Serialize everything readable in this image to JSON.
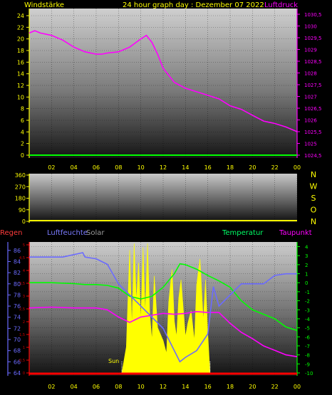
{
  "header": {
    "left_label": "Windstärke",
    "title": "24 hour graph day : Dezember 07 2022",
    "right_label": "Luftdruck"
  },
  "mid_header": {
    "regen_label": "Regen",
    "humidity_label": "Luftfeuchte",
    "solar_label": "Solar",
    "temp_label": "Temperatur",
    "dew_label": "Taupunkt"
  },
  "sun_label": "Sun",
  "colors": {
    "wind_axis": "#ffff00",
    "pressure": "#ff00ff",
    "wind_line": "#00ff00",
    "temperature": "#00ff00",
    "dewpoint": "#ff00ff",
    "humidity": "#6b6bff",
    "solar": "#ffff00",
    "rain": "#ff0000",
    "regen_label": "#ff3b3b",
    "humidity_label": "#7b7bff",
    "solar_label": "#9a9a9a",
    "temp_label": "#00ff66",
    "dew_label": "#ff00ff"
  },
  "chart_data": [
    {
      "id": "wind_pressure",
      "type": "line",
      "x_ticks": [
        "02",
        "04",
        "06",
        "08",
        "10",
        "12",
        "14",
        "16",
        "18",
        "20",
        "22",
        "00"
      ],
      "left_axis": {
        "ticks": [
          "0",
          "2",
          "4",
          "6",
          "8",
          "10",
          "12",
          "14",
          "16",
          "18",
          "20",
          "22",
          "24"
        ],
        "ylim": [
          0,
          24
        ]
      },
      "right_axis": {
        "ticks": [
          "1024,5",
          "1025",
          "1025,5",
          "1026",
          "1026,5",
          "1027",
          "1027,5",
          "1028",
          "1028,5",
          "1029",
          "1029,5",
          "1030",
          "1030,5"
        ],
        "ylim": [
          1024.5,
          1030.5
        ]
      },
      "series": [
        {
          "axis": "right",
          "color": "#ff00ff",
          "x": [
            0,
            0.5,
            1,
            2,
            3,
            4,
            5,
            6,
            6.5,
            7,
            8,
            9,
            10,
            10.5,
            11,
            11.5,
            12,
            13,
            14,
            15,
            16,
            17,
            18,
            19,
            20,
            21,
            21.5,
            22,
            23,
            24
          ],
          "y": [
            1029.7,
            1029.8,
            1029.7,
            1029.6,
            1029.4,
            1029.1,
            1028.9,
            1028.8,
            1028.8,
            1028.85,
            1028.9,
            1029.1,
            1029.45,
            1029.6,
            1029.3,
            1028.8,
            1028.2,
            1027.6,
            1027.35,
            1027.2,
            1027.05,
            1026.9,
            1026.6,
            1026.45,
            1026.2,
            1025.95,
            1025.9,
            1025.85,
            1025.7,
            1025.5
          ]
        },
        {
          "axis": "left",
          "color": "#00ff00",
          "x": [
            0,
            24
          ],
          "y": [
            0,
            0
          ]
        }
      ]
    },
    {
      "id": "wind_direction",
      "type": "scatter",
      "x_ticks": [
        "02",
        "04",
        "06",
        "08",
        "10",
        "12",
        "14",
        "16",
        "18",
        "20",
        "22",
        "00"
      ],
      "left_axis": {
        "ticks": [
          "0",
          "90",
          "180",
          "270",
          "360"
        ],
        "ylim": [
          0,
          360
        ]
      },
      "right_axis": {
        "ticks": [
          "N",
          "W",
          "S",
          "O",
          "N"
        ]
      },
      "series": [
        {
          "color": "#ffff00",
          "x": [
            0,
            24
          ],
          "y": [
            0,
            0
          ]
        }
      ]
    },
    {
      "id": "temp_humidity_solar",
      "type": "line",
      "x_ticks": [
        "02",
        "04",
        "06",
        "08",
        "10",
        "12",
        "14",
        "16",
        "18",
        "20",
        "22",
        "00"
      ],
      "humidity_axis": {
        "ticks": [
          "64",
          "66",
          "68",
          "70",
          "72",
          "74",
          "76",
          "78",
          "80",
          "82",
          "84",
          "86"
        ],
        "ylim": [
          64,
          87
        ]
      },
      "rain_axis": {
        "ticks": [
          "0",
          "0,5",
          "1",
          "1,5",
          "2",
          "2,5",
          "3",
          "3,5",
          "4",
          "4,5",
          "5"
        ],
        "ylim": [
          0,
          5
        ]
      },
      "temp_axis": {
        "ticks": [
          "-10",
          "-9",
          "-8",
          "-7",
          "-6",
          "-5",
          "-4",
          "-3",
          "-2",
          "-1",
          "0",
          "1",
          "2",
          "3",
          "4"
        ],
        "ylim": [
          -10,
          4.2
        ]
      },
      "sun_window": [
        8.3,
        16.2
      ],
      "series": [
        {
          "name": "Temperatur",
          "axis": "temp",
          "color": "#00ff00",
          "x": [
            0,
            2,
            4,
            5,
            6,
            7,
            8,
            9,
            10,
            11,
            12,
            13,
            13.5,
            14,
            15,
            16,
            17,
            18,
            19,
            20,
            21,
            22,
            23,
            24
          ],
          "y": [
            0,
            0,
            -0.1,
            -0.2,
            -0.2,
            -0.3,
            -0.6,
            -1.5,
            -1.8,
            -1.5,
            -0.5,
            1,
            2.1,
            2,
            1.5,
            0.8,
            0.2,
            -0.5,
            -2,
            -3,
            -3.5,
            -4,
            -4.9,
            -5.3
          ]
        },
        {
          "name": "Taupunkt",
          "axis": "temp",
          "color": "#ff00ff",
          "x": [
            0,
            2,
            4,
            6,
            7,
            8,
            9,
            10,
            11,
            12,
            13,
            14,
            15,
            16,
            17,
            18,
            19,
            20,
            21,
            22,
            23,
            24
          ],
          "y": [
            -2.8,
            -2.7,
            -2.8,
            -2.8,
            -3,
            -3.8,
            -4.4,
            -3.8,
            -3.6,
            -3.4,
            -3.5,
            -3.4,
            -3.2,
            -3.3,
            -3.3,
            -4.5,
            -5.5,
            -6.2,
            -7,
            -7.5,
            -8,
            -8.2
          ]
        },
        {
          "name": "Luftfeuchte",
          "axis": "humidity",
          "color": "#6b6bff",
          "x": [
            0,
            3,
            4.8,
            5,
            6,
            7,
            8,
            9,
            10,
            11,
            12,
            13,
            13.5,
            14,
            15,
            16,
            16.5,
            17,
            18,
            19,
            20,
            21,
            22,
            23,
            24
          ],
          "y": [
            84.8,
            84.8,
            85.6,
            84.8,
            84.5,
            83.5,
            80,
            78,
            76,
            74,
            72,
            68,
            66,
            66.8,
            68,
            71,
            79.5,
            76,
            78,
            80,
            80,
            80,
            81.5,
            81.8,
            81.8
          ]
        },
        {
          "name": "Solar",
          "type": "area",
          "color": "#ffff00",
          "x": [
            8.3,
            8.7,
            9,
            9.2,
            9.4,
            9.6,
            9.8,
            10,
            10.2,
            10.4,
            10.6,
            10.8,
            11,
            11.2,
            11.5,
            12,
            12.3,
            12.5,
            12.8,
            13,
            13.2,
            13.4,
            13.6,
            13.8,
            14,
            14.2,
            14.5,
            14.8,
            15,
            15.3,
            15.6,
            15.8,
            16,
            16.2
          ],
          "y": [
            0,
            20,
            95,
            35,
            100,
            55,
            85,
            40,
            97,
            45,
            100,
            45,
            25,
            75,
            35,
            25,
            15,
            55,
            80,
            40,
            28,
            58,
            72,
            50,
            28,
            38,
            48,
            25,
            68,
            88,
            40,
            72,
            30,
            0
          ]
        },
        {
          "name": "Regen",
          "axis": "rain",
          "color": "#ff0000",
          "x": [
            0,
            24
          ],
          "y": [
            0,
            0
          ]
        }
      ]
    }
  ]
}
